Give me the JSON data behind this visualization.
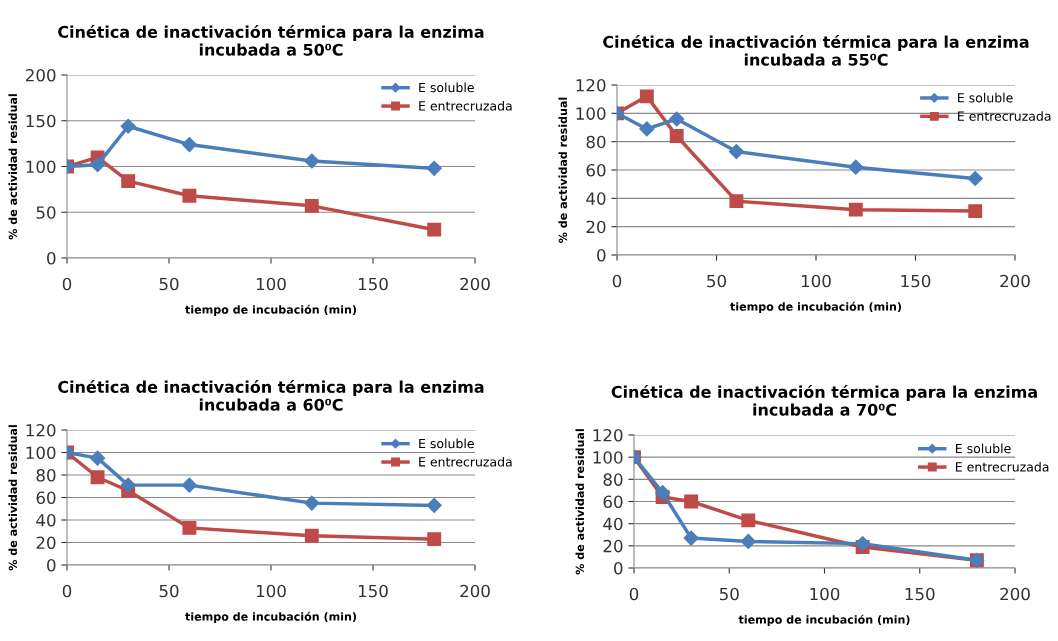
{
  "chart_data": [
    {
      "type": "line",
      "title": "Cinética de inactivación térmica para la enzima\nincubada a 50⁰C",
      "xlabel": "tiempo de incubación (min)",
      "ylabel": "% de actividad residual",
      "x": [
        0,
        15,
        30,
        60,
        120,
        180
      ],
      "xlim": [
        0,
        200
      ],
      "xticks": [
        0,
        50,
        100,
        150,
        200
      ],
      "ylim": [
        0,
        200
      ],
      "yticks": [
        0,
        50,
        100,
        150,
        200
      ],
      "grid": "y",
      "legend": "top right",
      "series": [
        {
          "name": "E soluble",
          "color": "#4a7ebb",
          "marker": "diamond",
          "values": [
            100,
            102,
            144,
            124,
            106,
            98
          ]
        },
        {
          "name": "E entrecruzada",
          "color": "#be4b48",
          "marker": "square",
          "values": [
            100,
            110,
            84,
            68,
            57,
            31
          ]
        }
      ]
    },
    {
      "type": "line",
      "title": "Cinética de inactivación térmica para la enzima\nincubada a 55⁰C",
      "xlabel": "tiempo de incubación (min)",
      "ylabel": "% de actividad residual",
      "x": [
        0,
        15,
        30,
        60,
        120,
        180
      ],
      "xlim": [
        0,
        200
      ],
      "xticks": [
        0,
        50,
        100,
        150,
        200
      ],
      "ylim": [
        0,
        120
      ],
      "yticks": [
        0,
        20,
        40,
        60,
        80,
        100,
        120
      ],
      "grid": "y",
      "legend": "top right",
      "series": [
        {
          "name": "E soluble",
          "color": "#4a7ebb",
          "marker": "diamond",
          "values": [
            100,
            89,
            96,
            73,
            62,
            54
          ]
        },
        {
          "name": "E entrecruzada",
          "color": "#be4b48",
          "marker": "square",
          "values": [
            100,
            112,
            84,
            38,
            32,
            31
          ]
        }
      ]
    },
    {
      "type": "line",
      "title": "Cinética de inactivación térmica para la enzima\nincubada a 60⁰C",
      "xlabel": "tiempo de incubación (min)",
      "ylabel": "% de actividad residual",
      "x": [
        0,
        15,
        30,
        60,
        120,
        180
      ],
      "xlim": [
        0,
        200
      ],
      "xticks": [
        0,
        50,
        100,
        150,
        200
      ],
      "ylim": [
        0,
        120
      ],
      "yticks": [
        0,
        20,
        40,
        60,
        80,
        100,
        120
      ],
      "grid": "y",
      "legend": "top right",
      "series": [
        {
          "name": "E soluble",
          "color": "#4a7ebb",
          "marker": "diamond",
          "values": [
            100,
            95,
            71,
            71,
            55,
            53
          ]
        },
        {
          "name": "E entrecruzada",
          "color": "#be4b48",
          "marker": "square",
          "values": [
            100,
            78,
            66,
            33,
            26,
            23
          ]
        }
      ]
    },
    {
      "type": "line",
      "title": "Cinética de inactivación térmica para la enzima\nincubada a 70⁰C",
      "xlabel": "tiempo de incubación (min)",
      "ylabel": "% de actividad residual",
      "x": [
        0,
        15,
        30,
        60,
        120,
        180
      ],
      "xlim": [
        0,
        200
      ],
      "xticks": [
        0,
        50,
        100,
        150,
        200
      ],
      "ylim": [
        0,
        120
      ],
      "yticks": [
        0,
        20,
        40,
        60,
        80,
        100,
        120
      ],
      "grid": "y",
      "legend": "top right",
      "series": [
        {
          "name": "E soluble",
          "color": "#4a7ebb",
          "marker": "diamond",
          "values": [
            100,
            68,
            27,
            24,
            22,
            7
          ]
        },
        {
          "name": "E entrecruzada",
          "color": "#be4b48",
          "marker": "square",
          "values": [
            100,
            64,
            60,
            43,
            19,
            7
          ]
        }
      ]
    }
  ]
}
